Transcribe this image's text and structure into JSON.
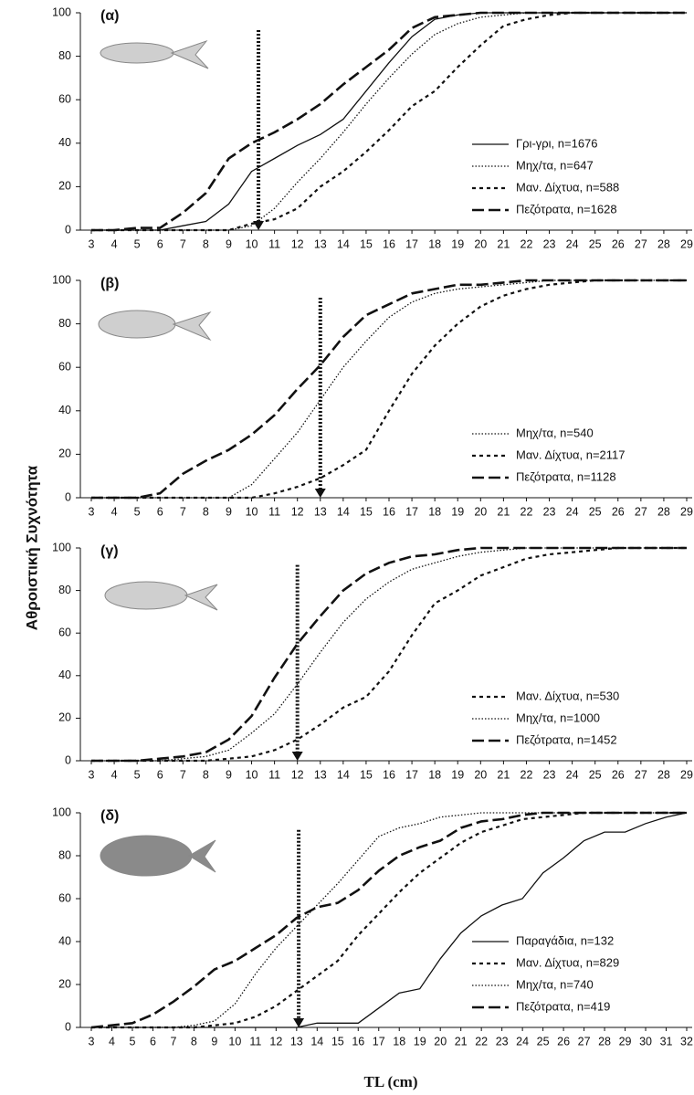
{
  "y_label": "Αθροιστική Συχνότητα",
  "x_label": "TL (cm)",
  "chart_data": [
    {
      "type": "line",
      "label": "(α)",
      "legend": "lower right",
      "xlim": [
        3,
        29
      ],
      "ylim": [
        0,
        100
      ],
      "xticks": [
        3,
        4,
        5,
        6,
        7,
        8,
        9,
        10,
        11,
        12,
        13,
        14,
        15,
        16,
        17,
        18,
        19,
        20,
        21,
        22,
        23,
        24,
        25,
        26,
        27,
        28,
        29
      ],
      "yticks": [
        0,
        20,
        40,
        60,
        80,
        100
      ],
      "arrow": 10.3,
      "x": [
        3,
        4,
        5,
        6,
        7,
        8,
        9,
        10,
        11,
        12,
        13,
        14,
        15,
        16,
        17,
        18,
        19,
        20,
        21,
        22,
        23,
        24,
        25,
        26,
        27,
        28,
        29
      ],
      "series": [
        {
          "name": "Γρι-γρι, n=1676",
          "color": "#111111",
          "dash": "solid",
          "values": [
            0,
            0,
            0,
            0,
            2,
            4,
            12,
            27,
            33,
            39,
            44,
            51,
            64,
            77,
            89,
            97,
            99,
            100,
            100,
            100,
            100,
            100,
            100,
            100,
            100,
            100,
            100
          ]
        },
        {
          "name": "Μηχ/τα, n=647",
          "color": "#111111",
          "dash": "dotted",
          "values": [
            0,
            0,
            0,
            0,
            0,
            0,
            0,
            2,
            10,
            22,
            33,
            45,
            58,
            70,
            81,
            90,
            95,
            98,
            99,
            100,
            100,
            100,
            100,
            100,
            100,
            100,
            100
          ]
        },
        {
          "name": "Μαν. Δίχτυα, n=588",
          "color": "#111111",
          "dash": "short",
          "values": [
            0,
            0,
            0,
            0,
            0,
            0,
            0,
            3,
            5,
            10,
            20,
            27,
            36,
            46,
            57,
            64,
            75,
            85,
            94,
            97,
            99,
            100,
            100,
            100,
            100,
            100,
            100
          ]
        },
        {
          "name": "Πεζότρατα, n=1628",
          "color": "#111111",
          "dash": "long",
          "values": [
            0,
            0,
            1,
            1,
            8,
            17,
            33,
            40,
            45,
            51,
            58,
            67,
            75,
            83,
            93,
            98,
            99,
            100,
            100,
            100,
            100,
            100,
            100,
            100,
            100,
            100,
            100
          ]
        }
      ]
    },
    {
      "type": "line",
      "label": "(β)",
      "legend": "lower right",
      "xlim": [
        3,
        29
      ],
      "ylim": [
        0,
        100
      ],
      "xticks": [
        3,
        4,
        5,
        6,
        7,
        8,
        9,
        10,
        11,
        12,
        13,
        14,
        15,
        16,
        17,
        18,
        19,
        20,
        21,
        22,
        23,
        24,
        25,
        26,
        27,
        28,
        29
      ],
      "yticks": [
        0,
        20,
        40,
        60,
        80,
        100
      ],
      "arrow": 13,
      "x": [
        3,
        4,
        5,
        6,
        7,
        8,
        9,
        10,
        11,
        12,
        13,
        14,
        15,
        16,
        17,
        18,
        19,
        20,
        21,
        22,
        23,
        24,
        25,
        26,
        27,
        28,
        29
      ],
      "series": [
        {
          "name": "Μηχ/τα, n=540",
          "color": "#111111",
          "dash": "dotted",
          "values": [
            0,
            0,
            0,
            0,
            0,
            0,
            0,
            6,
            18,
            30,
            45,
            60,
            72,
            83,
            90,
            94,
            96,
            97,
            98,
            99,
            100,
            100,
            100,
            100,
            100,
            100,
            100
          ]
        },
        {
          "name": "Μαν. Δίχτυα, n=2117",
          "color": "#111111",
          "dash": "short",
          "values": [
            0,
            0,
            0,
            0,
            0,
            0,
            0,
            0,
            2,
            5,
            9,
            15,
            22,
            40,
            57,
            70,
            80,
            88,
            93,
            96,
            98,
            99,
            100,
            100,
            100,
            100,
            100
          ]
        },
        {
          "name": "Πεζότρατα, n=1128",
          "color": "#111111",
          "dash": "long",
          "values": [
            0,
            0,
            0,
            2,
            11,
            17,
            22,
            29,
            38,
            50,
            61,
            74,
            84,
            89,
            94,
            96,
            98,
            98,
            99,
            100,
            100,
            100,
            100,
            100,
            100,
            100,
            100
          ]
        }
      ]
    },
    {
      "type": "line",
      "label": "(γ)",
      "legend": "lower right",
      "xlim": [
        3,
        29
      ],
      "ylim": [
        0,
        100
      ],
      "xticks": [
        3,
        4,
        5,
        6,
        7,
        8,
        9,
        10,
        11,
        12,
        13,
        14,
        15,
        16,
        17,
        18,
        19,
        20,
        21,
        22,
        23,
        24,
        25,
        26,
        27,
        28,
        29
      ],
      "yticks": [
        0,
        20,
        40,
        60,
        80,
        100
      ],
      "arrow": 12,
      "x": [
        3,
        4,
        5,
        6,
        7,
        8,
        9,
        10,
        11,
        12,
        13,
        14,
        15,
        16,
        17,
        18,
        19,
        20,
        21,
        22,
        23,
        24,
        25,
        26,
        27,
        28,
        29
      ],
      "series": [
        {
          "name": "Μαν. Δίχτυα, n=530",
          "color": "#111111",
          "dash": "short",
          "values": [
            0,
            0,
            0,
            0,
            0,
            0,
            1,
            2,
            5,
            10,
            17,
            25,
            30,
            42,
            59,
            74,
            80,
            87,
            91,
            95,
            97,
            98,
            99,
            100,
            100,
            100,
            100
          ]
        },
        {
          "name": "Μηχ/τα, n=1000",
          "color": "#111111",
          "dash": "dotted",
          "values": [
            0,
            0,
            0,
            0,
            1,
            2,
            5,
            13,
            22,
            36,
            51,
            65,
            76,
            84,
            90,
            93,
            96,
            98,
            99,
            100,
            100,
            100,
            100,
            100,
            100,
            100,
            100
          ]
        },
        {
          "name": "Πεζότρατα, n=1452",
          "color": "#111111",
          "dash": "long",
          "values": [
            0,
            0,
            0,
            1,
            2,
            4,
            10,
            21,
            39,
            55,
            68,
            80,
            88,
            93,
            96,
            97,
            99,
            100,
            100,
            100,
            100,
            100,
            100,
            100,
            100,
            100,
            100
          ]
        }
      ]
    },
    {
      "type": "line",
      "label": "(δ)",
      "legend": "lower right",
      "xlim": [
        3,
        32
      ],
      "ylim": [
        0,
        100
      ],
      "xticks": [
        3,
        4,
        5,
        6,
        7,
        8,
        9,
        10,
        11,
        12,
        13,
        14,
        15,
        16,
        17,
        18,
        19,
        20,
        21,
        22,
        23,
        24,
        25,
        26,
        27,
        28,
        29,
        30,
        31,
        32
      ],
      "yticks": [
        0,
        20,
        40,
        60,
        80,
        100
      ],
      "arrow": 13.1,
      "x": [
        3,
        4,
        5,
        6,
        7,
        8,
        9,
        10,
        11,
        12,
        13,
        14,
        15,
        16,
        17,
        18,
        19,
        20,
        21,
        22,
        23,
        24,
        25,
        26,
        27,
        28,
        29,
        30,
        31,
        32
      ],
      "series": [
        {
          "name": "Παραγάδια, n=132",
          "color": "#111111",
          "dash": "solid",
          "values": [
            0,
            0,
            0,
            0,
            0,
            0,
            0,
            0,
            0,
            0,
            0,
            2,
            2,
            2,
            9,
            16,
            18,
            32,
            44,
            52,
            57,
            60,
            72,
            79,
            87,
            91,
            91,
            95,
            98,
            100
          ]
        },
        {
          "name": "Μαν. Δίχτυα, n=829",
          "color": "#111111",
          "dash": "short",
          "values": [
            0,
            0,
            0,
            0,
            0,
            0,
            1,
            2,
            5,
            10,
            17,
            24,
            31,
            43,
            53,
            63,
            72,
            79,
            86,
            91,
            94,
            97,
            98,
            99,
            100,
            100,
            100,
            100,
            100,
            100
          ]
        },
        {
          "name": "Μηχ/τα, n=740",
          "color": "#111111",
          "dash": "dotted",
          "values": [
            0,
            0,
            0,
            0,
            0,
            1,
            3,
            11,
            25,
            37,
            47,
            57,
            67,
            78,
            89,
            93,
            95,
            98,
            99,
            100,
            100,
            100,
            100,
            100,
            100,
            100,
            100,
            100,
            100,
            100
          ]
        },
        {
          "name": "Πεζότρατα, n=419",
          "color": "#111111",
          "dash": "long",
          "values": [
            0,
            1,
            2,
            6,
            12,
            19,
            27,
            31,
            37,
            43,
            51,
            56,
            58,
            64,
            73,
            80,
            84,
            87,
            93,
            96,
            97,
            99,
            100,
            100,
            100,
            100,
            100,
            100,
            100,
            100
          ]
        }
      ]
    }
  ]
}
